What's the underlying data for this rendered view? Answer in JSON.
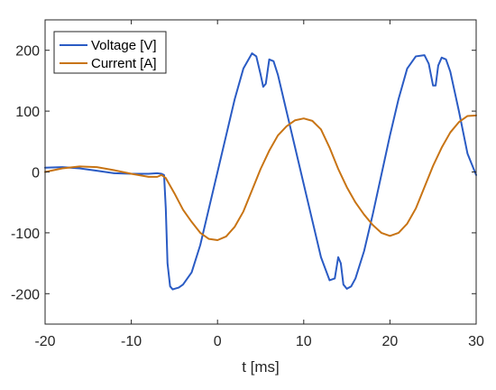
{
  "chart_data": {
    "type": "line",
    "title": "",
    "xlabel": "t [ms]",
    "ylabel": "",
    "xlim": [
      -20,
      30
    ],
    "ylim": [
      -250,
      250
    ],
    "xticks": [
      -20,
      -10,
      0,
      10,
      20,
      30
    ],
    "yticks": [
      -200,
      -100,
      0,
      100,
      200
    ],
    "grid": false,
    "legend_position": "top-left",
    "series": [
      {
        "name": "Voltage [V]",
        "color": "#2a5bc4",
        "x": [
          -20,
          -18,
          -16,
          -14,
          -12,
          -10,
          -8,
          -7,
          -6.5,
          -6.2,
          -6,
          -5.8,
          -5.5,
          -5.2,
          -5,
          -4.5,
          -4,
          -3,
          -2,
          -1,
          0,
          1,
          2,
          3,
          4,
          4.5,
          5,
          5.3,
          5.6,
          6,
          6.5,
          7,
          8,
          9,
          10,
          11,
          12,
          13,
          13.6,
          14,
          14.3,
          14.6,
          15,
          15.5,
          16,
          17,
          18,
          19,
          20,
          21,
          22,
          23,
          24,
          24.5,
          25,
          25.3,
          25.6,
          26,
          26.5,
          27,
          28,
          29,
          30
        ],
        "y": [
          7,
          8,
          6,
          2,
          -2,
          -3,
          -3,
          -2,
          -3,
          -5,
          -60,
          -150,
          -188,
          -193,
          -192,
          -190,
          -185,
          -165,
          -120,
          -60,
          0,
          60,
          120,
          170,
          195,
          190,
          160,
          140,
          145,
          185,
          182,
          160,
          100,
          40,
          -20,
          -80,
          -140,
          -178,
          -175,
          -140,
          -150,
          -185,
          -192,
          -188,
          -175,
          -130,
          -70,
          -5,
          60,
          120,
          170,
          190,
          192,
          178,
          142,
          142,
          175,
          188,
          185,
          165,
          100,
          30,
          -5
        ]
      },
      {
        "name": "Current [A]",
        "color": "#c87414",
        "x": [
          -20,
          -18,
          -16,
          -14,
          -12,
          -10,
          -8,
          -7,
          -6.5,
          -6,
          -5,
          -4,
          -3,
          -2,
          -1,
          0,
          1,
          2,
          3,
          4,
          5,
          6,
          7,
          8,
          9,
          10,
          11,
          12,
          13,
          14,
          15,
          16,
          17,
          18,
          19,
          20,
          21,
          22,
          23,
          24,
          25,
          26,
          27,
          28,
          29,
          30
        ],
        "y": [
          0,
          6,
          9,
          8,
          3,
          -3,
          -8,
          -8,
          -5,
          -10,
          -35,
          -62,
          -82,
          -100,
          -110,
          -112,
          -106,
          -90,
          -65,
          -30,
          5,
          35,
          60,
          75,
          85,
          88,
          84,
          70,
          40,
          5,
          -25,
          -50,
          -70,
          -87,
          -100,
          -105,
          -100,
          -85,
          -60,
          -25,
          10,
          40,
          65,
          82,
          92,
          93
        ]
      }
    ]
  }
}
